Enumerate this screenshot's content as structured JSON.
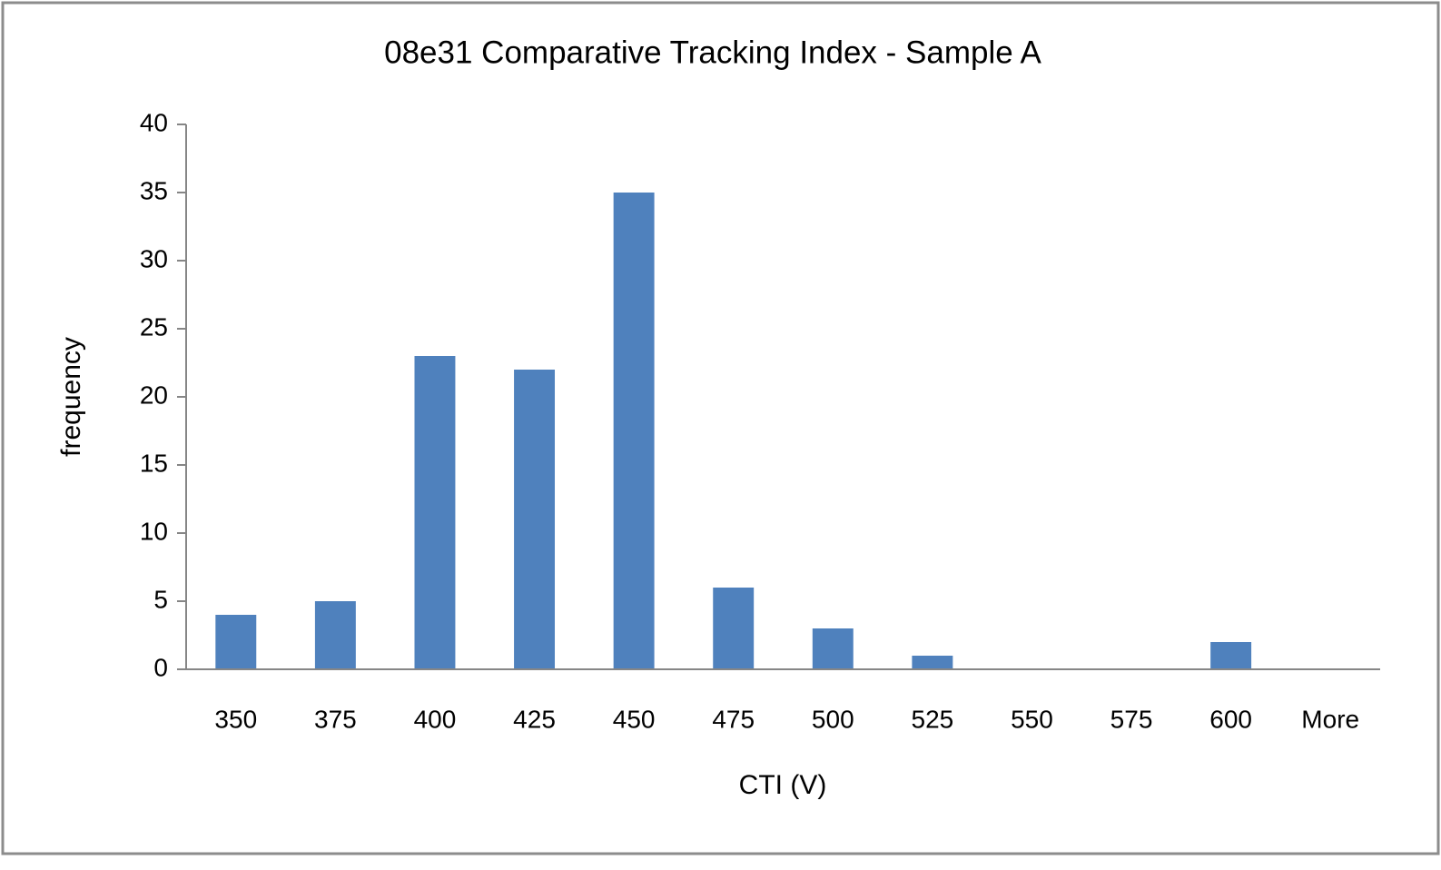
{
  "chart_data": {
    "type": "bar",
    "title": "08e31 Comparative Tracking Index - Sample A",
    "x_label": "CTI (V)",
    "y_label": "frequency",
    "categories": [
      "350",
      "375",
      "400",
      "425",
      "450",
      "475",
      "500",
      "525",
      "550",
      "575",
      "600",
      "More"
    ],
    "values": [
      4,
      5,
      23,
      22,
      35,
      6,
      3,
      1,
      0,
      0,
      2,
      0
    ],
    "color": "#4f81bd",
    "ylim": [
      0,
      40
    ],
    "yticks": [
      0,
      5,
      10,
      15,
      20,
      25,
      30,
      35,
      40
    ],
    "grid": false
  }
}
